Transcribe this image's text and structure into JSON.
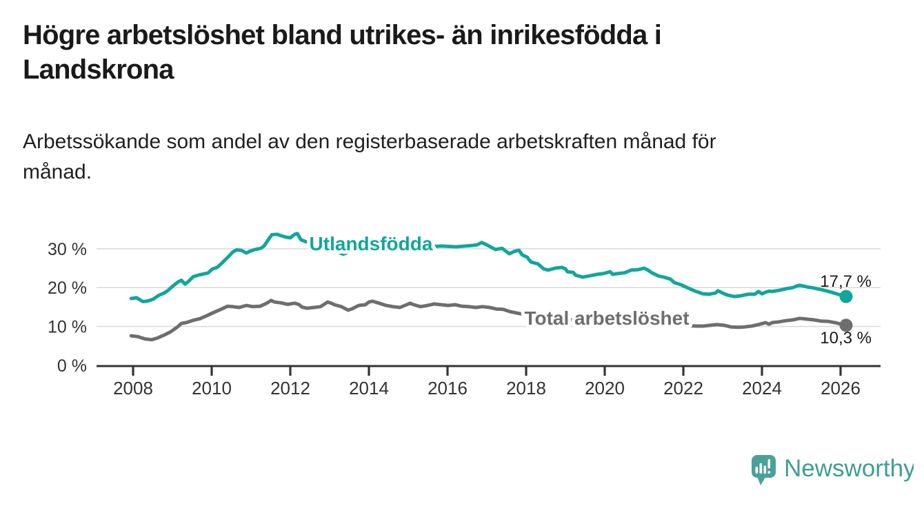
{
  "header": {
    "title_lines": [
      "Högre arbetslöshet bland utrikes- än inrikesfödda i",
      "Landskrona"
    ],
    "subtitle_lines": [
      "Arbetssökande som andel av den registerbaserade arbetskraften månad för",
      "månad."
    ]
  },
  "chart_data": {
    "type": "line",
    "title": "Högre arbetslöshet bland utrikes- än inrikesfödda i Landskrona",
    "subtitle": "Arbetssökande som andel av den registerbaserade arbetskraften månad för månad.",
    "xlabel": "",
    "ylabel": "",
    "grid": "horizontal-only",
    "x_ticks": [
      2008,
      2010,
      2012,
      2014,
      2016,
      2018,
      2020,
      2022,
      2024,
      2026
    ],
    "y_ticks": [
      0,
      10,
      20,
      30
    ],
    "y_tick_suffix": " %",
    "xlim": [
      2007.5,
      2027.0
    ],
    "ylim": [
      0,
      36
    ],
    "colors": {
      "axis": "#333333",
      "grid": "#dcdcdc",
      "value_label": "#1a1a1a"
    },
    "series": [
      {
        "name": "Utlandsfödda",
        "color": "#12a69b",
        "end_value_label": "17,7 %",
        "end_marker": true,
        "points": [
          [
            2007.95,
            17.2
          ],
          [
            2008.09,
            17.4
          ],
          [
            2008.25,
            16.4
          ],
          [
            2008.35,
            16.5
          ],
          [
            2008.51,
            17.0
          ],
          [
            2008.65,
            18.0
          ],
          [
            2008.79,
            18.6
          ],
          [
            2008.88,
            19.2
          ],
          [
            2009.0,
            20.3
          ],
          [
            2009.15,
            21.5
          ],
          [
            2009.23,
            21.9
          ],
          [
            2009.32,
            20.9
          ],
          [
            2009.41,
            21.6
          ],
          [
            2009.53,
            22.8
          ],
          [
            2009.65,
            23.2
          ],
          [
            2009.79,
            23.5
          ],
          [
            2009.91,
            23.8
          ],
          [
            2010.02,
            24.8
          ],
          [
            2010.14,
            25.2
          ],
          [
            2010.26,
            26.3
          ],
          [
            2010.35,
            27.2
          ],
          [
            2010.44,
            28.1
          ],
          [
            2010.53,
            29.1
          ],
          [
            2010.63,
            29.7
          ],
          [
            2010.75,
            29.6
          ],
          [
            2010.88,
            28.9
          ],
          [
            2010.98,
            29.4
          ],
          [
            2011.11,
            29.8
          ],
          [
            2011.25,
            30.1
          ],
          [
            2011.33,
            30.7
          ],
          [
            2011.42,
            32.0
          ],
          [
            2011.53,
            33.6
          ],
          [
            2011.66,
            33.7
          ],
          [
            2011.75,
            33.4
          ],
          [
            2011.88,
            33.0
          ],
          [
            2012.0,
            32.8
          ],
          [
            2012.11,
            33.7
          ],
          [
            2012.18,
            33.9
          ],
          [
            2012.27,
            32.3
          ],
          [
            2012.4,
            31.8
          ],
          [
            2012.6,
            31.3
          ],
          [
            2012.8,
            31.0
          ],
          [
            2013.0,
            30.2
          ],
          [
            2013.2,
            29.2
          ],
          [
            2013.35,
            28.6
          ],
          [
            2013.5,
            29.3
          ],
          [
            2013.7,
            30.2
          ],
          [
            2013.9,
            30.8
          ],
          [
            2014.1,
            31.2
          ],
          [
            2014.3,
            31.5
          ],
          [
            2014.5,
            31.2
          ],
          [
            2014.7,
            30.9
          ],
          [
            2014.9,
            31.1
          ],
          [
            2015.1,
            31.3
          ],
          [
            2015.3,
            31.0
          ],
          [
            2015.5,
            30.8
          ],
          [
            2015.7,
            30.6
          ],
          [
            2015.87,
            30.7
          ],
          [
            2016.0,
            30.6
          ],
          [
            2016.22,
            30.5
          ],
          [
            2016.46,
            30.7
          ],
          [
            2016.6,
            30.8
          ],
          [
            2016.75,
            31.0
          ],
          [
            2016.87,
            31.6
          ],
          [
            2017.0,
            31.0
          ],
          [
            2017.22,
            29.8
          ],
          [
            2017.39,
            30.1
          ],
          [
            2017.57,
            28.7
          ],
          [
            2017.7,
            29.3
          ],
          [
            2017.82,
            29.6
          ],
          [
            2017.9,
            28.4
          ],
          [
            2018.03,
            27.8
          ],
          [
            2018.12,
            26.6
          ],
          [
            2018.3,
            26.1
          ],
          [
            2018.45,
            24.8
          ],
          [
            2018.56,
            24.5
          ],
          [
            2018.74,
            25.0
          ],
          [
            2018.91,
            25.2
          ],
          [
            2019.0,
            24.8
          ],
          [
            2019.05,
            24.1
          ],
          [
            2019.2,
            23.9
          ],
          [
            2019.26,
            23.2
          ],
          [
            2019.44,
            22.7
          ],
          [
            2019.6,
            23.0
          ],
          [
            2019.8,
            23.4
          ],
          [
            2019.96,
            23.6
          ],
          [
            2020.14,
            24.1
          ],
          [
            2020.2,
            23.4
          ],
          [
            2020.32,
            23.6
          ],
          [
            2020.5,
            23.8
          ],
          [
            2020.67,
            24.5
          ],
          [
            2020.84,
            24.6
          ],
          [
            2021.0,
            25.0
          ],
          [
            2021.1,
            24.5
          ],
          [
            2021.2,
            23.8
          ],
          [
            2021.37,
            23.0
          ],
          [
            2021.5,
            22.7
          ],
          [
            2021.67,
            22.2
          ],
          [
            2021.77,
            21.3
          ],
          [
            2021.95,
            20.7
          ],
          [
            2022.12,
            19.9
          ],
          [
            2022.3,
            19.1
          ],
          [
            2022.5,
            18.4
          ],
          [
            2022.65,
            18.3
          ],
          [
            2022.82,
            18.6
          ],
          [
            2022.88,
            19.2
          ],
          [
            2023.04,
            18.4
          ],
          [
            2023.12,
            18.1
          ],
          [
            2023.3,
            17.7
          ],
          [
            2023.47,
            17.9
          ],
          [
            2023.65,
            18.3
          ],
          [
            2023.82,
            18.3
          ],
          [
            2023.91,
            19.0
          ],
          [
            2024.0,
            18.4
          ],
          [
            2024.09,
            18.8
          ],
          [
            2024.18,
            19.1
          ],
          [
            2024.26,
            19.0
          ],
          [
            2024.44,
            19.3
          ],
          [
            2024.61,
            19.7
          ],
          [
            2024.79,
            20.0
          ],
          [
            2024.88,
            20.4
          ],
          [
            2024.96,
            20.6
          ],
          [
            2025.14,
            20.2
          ],
          [
            2025.32,
            19.9
          ],
          [
            2025.5,
            19.5
          ],
          [
            2025.7,
            19.0
          ],
          [
            2025.9,
            18.4
          ],
          [
            2026.0,
            18.1
          ],
          [
            2026.14,
            17.7
          ]
        ]
      },
      {
        "name": "Total arbetslöshet",
        "color": "#6e6e70",
        "end_value_label": "10,3 %",
        "end_marker": true,
        "points": [
          [
            2007.95,
            7.6
          ],
          [
            2008.12,
            7.4
          ],
          [
            2008.3,
            6.8
          ],
          [
            2008.47,
            6.6
          ],
          [
            2008.61,
            7.0
          ],
          [
            2008.77,
            7.7
          ],
          [
            2008.95,
            8.6
          ],
          [
            2009.12,
            9.8
          ],
          [
            2009.23,
            10.8
          ],
          [
            2009.35,
            11.0
          ],
          [
            2009.53,
            11.6
          ],
          [
            2009.7,
            12.0
          ],
          [
            2009.88,
            12.8
          ],
          [
            2010.05,
            13.6
          ],
          [
            2010.23,
            14.4
          ],
          [
            2010.4,
            15.2
          ],
          [
            2010.53,
            15.1
          ],
          [
            2010.7,
            14.9
          ],
          [
            2010.88,
            15.4
          ],
          [
            2011.05,
            15.1
          ],
          [
            2011.23,
            15.2
          ],
          [
            2011.4,
            16.0
          ],
          [
            2011.51,
            16.7
          ],
          [
            2011.6,
            16.3
          ],
          [
            2011.75,
            16.1
          ],
          [
            2011.93,
            15.7
          ],
          [
            2012.11,
            16.0
          ],
          [
            2012.21,
            15.7
          ],
          [
            2012.3,
            15.0
          ],
          [
            2012.42,
            14.7
          ],
          [
            2012.6,
            14.9
          ],
          [
            2012.77,
            15.1
          ],
          [
            2012.95,
            16.3
          ],
          [
            2013.04,
            16.0
          ],
          [
            2013.12,
            15.6
          ],
          [
            2013.3,
            15.1
          ],
          [
            2013.47,
            14.2
          ],
          [
            2013.56,
            14.5
          ],
          [
            2013.74,
            15.4
          ],
          [
            2013.91,
            15.6
          ],
          [
            2014.0,
            16.3
          ],
          [
            2014.09,
            16.5
          ],
          [
            2014.26,
            16.0
          ],
          [
            2014.44,
            15.4
          ],
          [
            2014.61,
            15.1
          ],
          [
            2014.79,
            14.9
          ],
          [
            2014.96,
            15.6
          ],
          [
            2015.05,
            16.0
          ],
          [
            2015.14,
            15.6
          ],
          [
            2015.31,
            15.1
          ],
          [
            2015.49,
            15.4
          ],
          [
            2015.66,
            15.8
          ],
          [
            2015.84,
            15.6
          ],
          [
            2016.02,
            15.4
          ],
          [
            2016.19,
            15.6
          ],
          [
            2016.37,
            15.2
          ],
          [
            2016.54,
            15.1
          ],
          [
            2016.72,
            14.9
          ],
          [
            2016.89,
            15.1
          ],
          [
            2017.07,
            14.9
          ],
          [
            2017.24,
            14.5
          ],
          [
            2017.42,
            14.4
          ],
          [
            2017.6,
            13.8
          ],
          [
            2017.75,
            13.5
          ],
          [
            2018.0,
            13.0
          ],
          [
            2018.25,
            12.6
          ],
          [
            2018.5,
            12.3
          ],
          [
            2018.75,
            12.0
          ],
          [
            2019.0,
            11.8
          ],
          [
            2019.25,
            11.6
          ],
          [
            2019.5,
            11.4
          ],
          [
            2019.75,
            11.3
          ],
          [
            2020.0,
            11.2
          ],
          [
            2020.25,
            11.4
          ],
          [
            2020.5,
            11.5
          ],
          [
            2020.75,
            11.4
          ],
          [
            2021.0,
            11.2
          ],
          [
            2021.25,
            11.0
          ],
          [
            2021.5,
            10.8
          ],
          [
            2021.75,
            10.6
          ],
          [
            2022.0,
            10.4
          ],
          [
            2022.16,
            10.2
          ],
          [
            2022.33,
            10.1
          ],
          [
            2022.51,
            10.1
          ],
          [
            2022.68,
            10.3
          ],
          [
            2022.86,
            10.5
          ],
          [
            2023.04,
            10.3
          ],
          [
            2023.21,
            9.9
          ],
          [
            2023.39,
            9.8
          ],
          [
            2023.56,
            9.9
          ],
          [
            2023.74,
            10.1
          ],
          [
            2023.91,
            10.5
          ],
          [
            2024.09,
            11.0
          ],
          [
            2024.18,
            10.6
          ],
          [
            2024.26,
            11.0
          ],
          [
            2024.44,
            11.2
          ],
          [
            2024.61,
            11.5
          ],
          [
            2024.79,
            11.7
          ],
          [
            2024.96,
            12.1
          ],
          [
            2025.14,
            11.9
          ],
          [
            2025.32,
            11.7
          ],
          [
            2025.5,
            11.4
          ],
          [
            2025.7,
            11.3
          ],
          [
            2025.9,
            10.9
          ],
          [
            2026.0,
            10.6
          ],
          [
            2026.14,
            10.3
          ]
        ]
      }
    ]
  },
  "branding": {
    "logo_text": "Newsworthy",
    "logo_text_color": "#3f9d95",
    "logo_bubble_color": "#4aa198"
  }
}
